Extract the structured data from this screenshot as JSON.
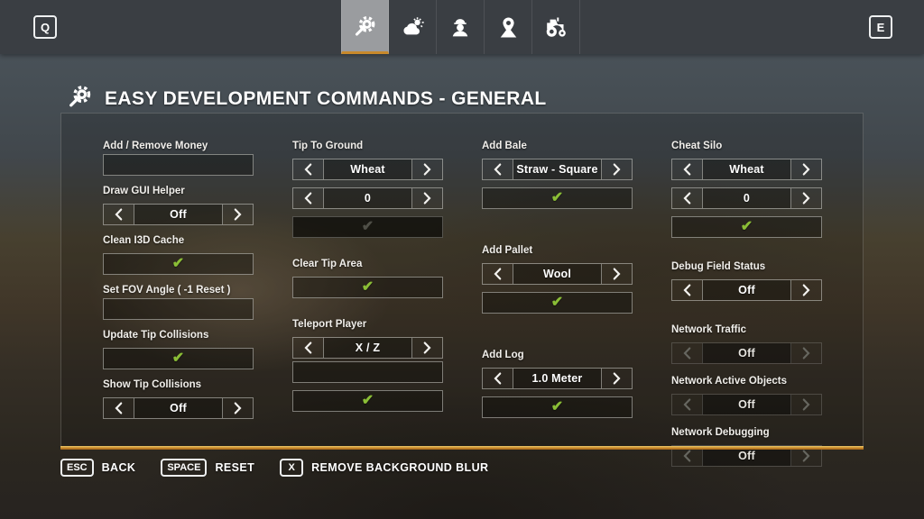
{
  "colors": {
    "accent": "#c8892b",
    "check_green": "#8abd36",
    "topbar_bg": "#3a3e43",
    "active_tab_bg": "#9a9c9f"
  },
  "top_bar": {
    "left_key_hint": "Q",
    "right_key_hint": "E",
    "tabs": [
      {
        "id": "general",
        "icon": "gear-wrench-icon",
        "active": true
      },
      {
        "id": "weather",
        "icon": "weather-icon",
        "active": false
      },
      {
        "id": "player",
        "icon": "player-icon",
        "active": false
      },
      {
        "id": "teleport",
        "icon": "map-pin-icon",
        "active": false
      },
      {
        "id": "vehicles",
        "icon": "tractor-icon",
        "active": false
      }
    ]
  },
  "header": {
    "title": "EASY DEVELOPMENT COMMANDS - GENERAL"
  },
  "panel": {
    "columns": [
      {
        "groups": [
          {
            "label": "Add / Remove Money",
            "widgets": [
              {
                "type": "input",
                "value": "",
                "placeholder": ""
              }
            ]
          },
          {
            "label": "Draw GUI Helper",
            "widgets": [
              {
                "type": "selector",
                "value": "Off",
                "enabled": true
              }
            ]
          },
          {
            "label": "Clean I3D Cache",
            "widgets": [
              {
                "type": "check",
                "enabled": true
              }
            ]
          },
          {
            "label": "Set FOV Angle ( -1 Reset )",
            "widgets": [
              {
                "type": "input",
                "value": "",
                "placeholder": ""
              }
            ]
          },
          {
            "label": "Update Tip Collisions",
            "widgets": [
              {
                "type": "check",
                "enabled": true
              }
            ]
          },
          {
            "label": "Show Tip Collisions",
            "widgets": [
              {
                "type": "selector",
                "value": "Off",
                "enabled": true
              }
            ]
          }
        ]
      },
      {
        "groups": [
          {
            "label": "Tip To Ground",
            "widgets": [
              {
                "type": "selector",
                "value": "Wheat",
                "enabled": true
              },
              {
                "type": "selector",
                "value": "0",
                "enabled": true
              },
              {
                "type": "check",
                "enabled": false
              }
            ]
          },
          {
            "label": "Clear Tip Area",
            "widgets": [
              {
                "type": "check",
                "enabled": true
              }
            ]
          },
          {
            "label": "Teleport Player",
            "widgets": [
              {
                "type": "selector",
                "value": "X / Z",
                "enabled": true
              },
              {
                "type": "input",
                "value": "",
                "placeholder": ""
              },
              {
                "type": "check",
                "enabled": true
              }
            ]
          }
        ]
      },
      {
        "groups": [
          {
            "label": "Add Bale",
            "widgets": [
              {
                "type": "selector",
                "value": "Straw - Square",
                "enabled": true
              },
              {
                "type": "check",
                "enabled": true
              }
            ]
          },
          {
            "label": "Add Pallet",
            "widgets": [
              {
                "type": "selector",
                "value": "Wool",
                "enabled": true
              },
              {
                "type": "check",
                "enabled": true
              }
            ]
          },
          {
            "label": "Add Log",
            "widgets": [
              {
                "type": "selector",
                "value": "1.0 Meter",
                "enabled": true
              },
              {
                "type": "check",
                "enabled": true
              }
            ]
          }
        ]
      },
      {
        "groups": [
          {
            "label": "Cheat Silo",
            "widgets": [
              {
                "type": "selector",
                "value": "Wheat",
                "enabled": true
              },
              {
                "type": "selector",
                "value": "0",
                "enabled": true
              },
              {
                "type": "check",
                "enabled": true
              }
            ]
          },
          {
            "label": "Debug Field Status",
            "widgets": [
              {
                "type": "selector",
                "value": "Off",
                "enabled": true
              }
            ]
          },
          {
            "label": "Network Traffic",
            "widgets": [
              {
                "type": "selector",
                "value": "Off",
                "enabled": false
              }
            ]
          },
          {
            "label": "Network Active Objects",
            "widgets": [
              {
                "type": "selector",
                "value": "Off",
                "enabled": false
              }
            ]
          },
          {
            "label": "Network Debugging",
            "widgets": [
              {
                "type": "selector",
                "value": "Off",
                "enabled": false
              }
            ]
          }
        ]
      }
    ]
  },
  "footer": {
    "hints": [
      {
        "key": "ESC",
        "label": "BACK"
      },
      {
        "key": "SPACE",
        "label": "RESET"
      },
      {
        "key": "X",
        "label": "REMOVE BACKGROUND BLUR"
      }
    ]
  }
}
